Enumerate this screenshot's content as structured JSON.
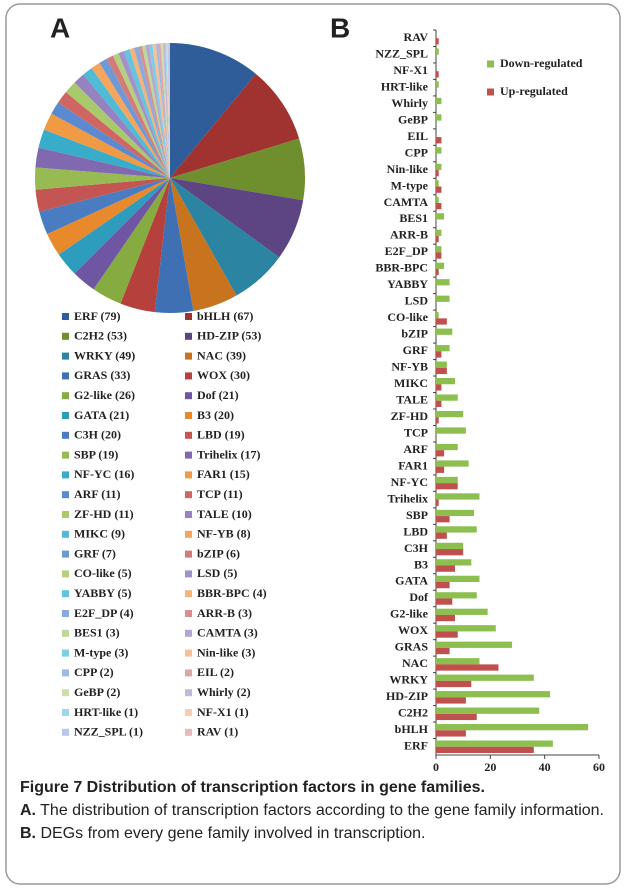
{
  "chart_data": [
    {
      "type": "pie",
      "panel": "A",
      "categories": [
        "ERF (79)",
        "bHLH (67)",
        "C2H2 (53)",
        "HD-ZIP (53)",
        "WRKY (49)",
        "NAC (39)",
        "GRAS (33)",
        "WOX (30)",
        "G2-like (26)",
        "Dof (21)",
        "GATA (21)",
        "B3 (20)",
        "C3H (20)",
        "LBD (19)",
        "SBP (19)",
        "Trihelix (17)",
        "NF-YC (16)",
        "FAR1 (15)",
        "ARF (11)",
        "TCP (11)",
        "ZF-HD (11)",
        "TALE (10)",
        "MIKC (9)",
        "NF-YB (8)",
        "GRF (7)",
        "bZIP (6)",
        "CO-like (5)",
        "LSD (5)",
        "YABBY (5)",
        "BBR-BPC (4)",
        "E2F_DP (4)",
        "ARR-B (3)",
        "BES1 (3)",
        "CAMTA (3)",
        "M-type (3)",
        "Nin-like (3)",
        "CPP (2)",
        "EIL (2)",
        "GeBP (2)",
        "Whirly (2)",
        "HRT-like (1)",
        "NF-X1 (1)",
        "NZZ_SPL (1)",
        "RAV (1)"
      ],
      "values": [
        79,
        67,
        53,
        53,
        49,
        39,
        33,
        30,
        26,
        21,
        21,
        20,
        20,
        19,
        19,
        17,
        16,
        15,
        11,
        11,
        11,
        10,
        9,
        8,
        7,
        6,
        5,
        5,
        5,
        4,
        4,
        3,
        3,
        3,
        3,
        3,
        2,
        2,
        2,
        2,
        1,
        1,
        1,
        1
      ],
      "colors": [
        "#2e5d99",
        "#a0322f",
        "#6f8f2f",
        "#5d4583",
        "#2a84a2",
        "#c8741f",
        "#3f70b3",
        "#b5403c",
        "#86ab41",
        "#6e56a3",
        "#2e9dbd",
        "#e88a2c",
        "#4a7cc1",
        "#c35552",
        "#97bb52",
        "#8069b1",
        "#38acc9",
        "#f09a44",
        "#5c8ad0",
        "#cf6663",
        "#a9ca6a",
        "#9682c0",
        "#4fbbd6",
        "#f5a65c",
        "#6f98d7",
        "#d27b78",
        "#b4d07f",
        "#a392c9",
        "#62c4de",
        "#f6b378",
        "#8aa9dc",
        "#d6908e",
        "#c0d897",
        "#b3a6d2",
        "#7ecde4",
        "#f8c096",
        "#a0b8e2",
        "#dda6a4",
        "#ccdeab",
        "#c2b7da",
        "#9dd8ea",
        "#f9cdae",
        "#b7c8e8",
        "#e5bcbb"
      ]
    },
    {
      "type": "hbar",
      "panel": "B",
      "categories": [
        "ERF",
        "bHLH",
        "C2H2",
        "HD-ZIP",
        "WRKY",
        "NAC",
        "GRAS",
        "WOX",
        "G2-like",
        "Dof",
        "GATA",
        "B3",
        "C3H",
        "LBD",
        "SBP",
        "Trihelix",
        "NF-YC",
        "FAR1",
        "ARF",
        "TCP",
        "ZF-HD",
        "TALE",
        "MIKC",
        "NF-YB",
        "GRF",
        "bZIP",
        "CO-like",
        "LSD",
        "YABBY",
        "BBR-BPC",
        "E2F_DP",
        "ARR-B",
        "BES1",
        "CAMTA",
        "M-type",
        "Nin-like",
        "CPP",
        "EIL",
        "GeBP",
        "Whirly",
        "HRT-like",
        "NF-X1",
        "NZZ_SPL",
        "RAV"
      ],
      "series": [
        {
          "name": "Down-regulated",
          "color": "#8cbf4f",
          "values": [
            43,
            56,
            38,
            42,
            36,
            16,
            28,
            22,
            19,
            15,
            16,
            13,
            10,
            15,
            14,
            16,
            8,
            12,
            8,
            11,
            10,
            8,
            7,
            4,
            5,
            6,
            1,
            5,
            5,
            3,
            2,
            2,
            3,
            1,
            1,
            2,
            2,
            0,
            2,
            2,
            1,
            0,
            1,
            0
          ]
        },
        {
          "name": "Up-regulated",
          "color": "#c0504d",
          "values": [
            36,
            11,
            15,
            11,
            13,
            23,
            5,
            8,
            7,
            6,
            5,
            7,
            10,
            4,
            5,
            1,
            8,
            3,
            3,
            0,
            1,
            2,
            2,
            4,
            2,
            0,
            4,
            0,
            0,
            1,
            2,
            1,
            0,
            2,
            2,
            1,
            0,
            2,
            0,
            0,
            0,
            1,
            0,
            1
          ]
        }
      ],
      "xlim": [
        0,
        60
      ],
      "xticks": [
        0,
        20,
        40,
        60
      ],
      "legend": "upper right"
    }
  ],
  "caption": {
    "title": "Figure 7 Distribution of transcription factors in gene families.",
    "parts": [
      {
        "label": "A.",
        "text": " The distribution of transcription factors according to the gene family information. "
      },
      {
        "label": "B.",
        "text": " DEGs from every gene family involved in transcription."
      }
    ]
  }
}
